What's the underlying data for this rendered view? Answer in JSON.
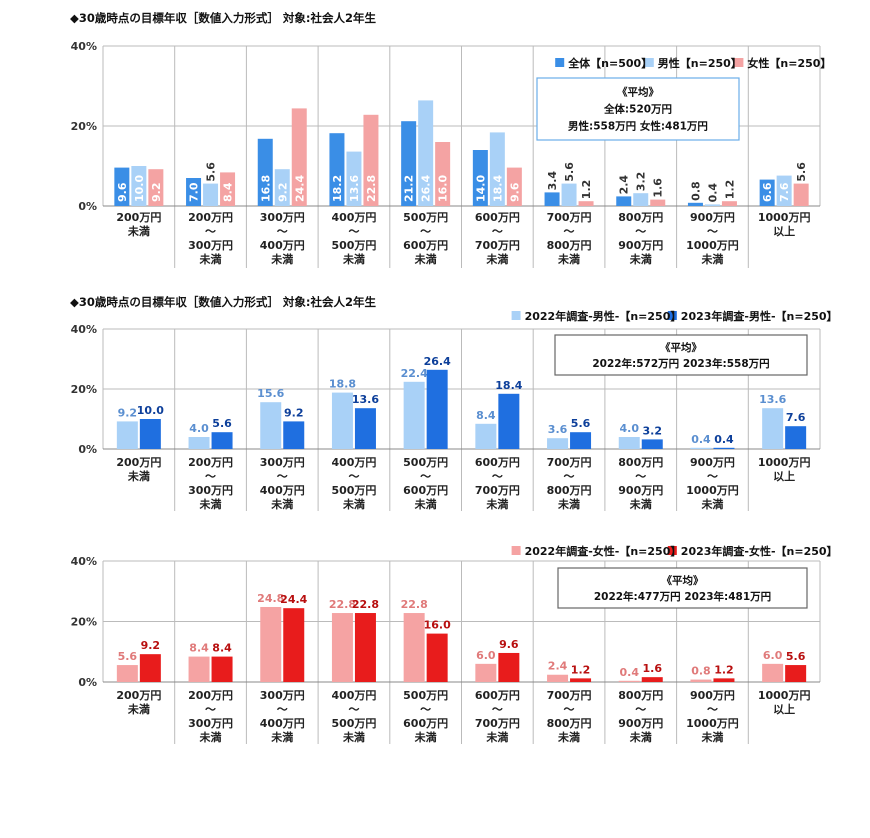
{
  "chart_data": [
    {
      "type": "bar",
      "title": "◆30歳時点の目標年収［数値入力形式］ 対象:社会人2年生",
      "categories": [
        [
          "200万円",
          "未満"
        ],
        [
          "200万円",
          "～",
          "300万円",
          "未満"
        ],
        [
          "300万円",
          "～",
          "400万円",
          "未満"
        ],
        [
          "400万円",
          "～",
          "500万円",
          "未満"
        ],
        [
          "500万円",
          "～",
          "600万円",
          "未満"
        ],
        [
          "600万円",
          "～",
          "700万円",
          "未満"
        ],
        [
          "700万円",
          "～",
          "800万円",
          "未満"
        ],
        [
          "800万円",
          "～",
          "900万円",
          "未満"
        ],
        [
          "900万円",
          "～",
          "1000万円",
          "未満"
        ],
        [
          "1000万円",
          "以上"
        ]
      ],
      "yticks": [
        "0%",
        "20%",
        "40%"
      ],
      "ylim": [
        0,
        40
      ],
      "label_position": "inside-vertical",
      "series": [
        {
          "name": "全体【n=500】",
          "color": "#3a8ee6",
          "label_color": "#ffffff",
          "values": [
            9.6,
            7.0,
            16.8,
            18.2,
            21.2,
            14.0,
            3.4,
            2.4,
            0.8,
            6.6
          ]
        },
        {
          "name": "男性【n=250】",
          "color": "#a9d1f7",
          "label_color": "#ffffff",
          "values": [
            10.0,
            5.6,
            9.2,
            13.6,
            26.4,
            18.4,
            5.6,
            3.2,
            0.4,
            7.6
          ]
        },
        {
          "name": "女性【n=250】",
          "color": "#f4a3a3",
          "label_color": "#ffffff",
          "values": [
            9.2,
            8.4,
            24.4,
            22.8,
            16.0,
            9.6,
            1.2,
            1.6,
            1.2,
            5.6
          ]
        }
      ],
      "legend": "top-right",
      "note": {
        "lines": [
          "《平均》",
          "全体:520万円",
          "男性:558万円 女性:481万円"
        ],
        "border": "#6aaee8"
      }
    },
    {
      "type": "bar",
      "title": "◆30歳時点の目標年収［数値入力形式］ 対象:社会人2年生",
      "categories": [
        [
          "200万円",
          "未満"
        ],
        [
          "200万円",
          "～",
          "300万円",
          "未満"
        ],
        [
          "300万円",
          "～",
          "400万円",
          "未満"
        ],
        [
          "400万円",
          "～",
          "500万円",
          "未満"
        ],
        [
          "500万円",
          "～",
          "600万円",
          "未満"
        ],
        [
          "600万円",
          "～",
          "700万円",
          "未満"
        ],
        [
          "700万円",
          "～",
          "800万円",
          "未満"
        ],
        [
          "800万円",
          "～",
          "900万円",
          "未満"
        ],
        [
          "900万円",
          "～",
          "1000万円",
          "未満"
        ],
        [
          "1000万円",
          "以上"
        ]
      ],
      "yticks": [
        "0%",
        "20%",
        "40%"
      ],
      "ylim": [
        0,
        40
      ],
      "label_position": "above",
      "series": [
        {
          "name": "2022年調査-男性-【n=250】",
          "color": "#a9d1f7",
          "label_color": "#5b8fd0",
          "values": [
            9.2,
            4.0,
            15.6,
            18.8,
            22.4,
            8.4,
            3.6,
            4.0,
            0.4,
            13.6
          ]
        },
        {
          "name": "2023年調査-男性-【n=250】",
          "color": "#1f6fe0",
          "label_color": "#0d3f9a",
          "values": [
            10.0,
            5.6,
            9.2,
            13.6,
            26.4,
            18.4,
            5.6,
            3.2,
            0.4,
            7.6
          ]
        }
      ],
      "legend": "top-right",
      "note": {
        "lines": [
          "《平均》",
          "2022年:572万円 2023年:558万円"
        ],
        "border": "#666666"
      }
    },
    {
      "type": "bar",
      "title": "",
      "categories": [
        [
          "200万円",
          "未満"
        ],
        [
          "200万円",
          "～",
          "300万円",
          "未満"
        ],
        [
          "300万円",
          "～",
          "400万円",
          "未満"
        ],
        [
          "400万円",
          "～",
          "500万円",
          "未満"
        ],
        [
          "500万円",
          "～",
          "600万円",
          "未満"
        ],
        [
          "600万円",
          "～",
          "700万円",
          "未満"
        ],
        [
          "700万円",
          "～",
          "800万円",
          "未満"
        ],
        [
          "800万円",
          "～",
          "900万円",
          "未満"
        ],
        [
          "900万円",
          "～",
          "1000万円",
          "未満"
        ],
        [
          "1000万円",
          "以上"
        ]
      ],
      "yticks": [
        "0%",
        "20%",
        "40%"
      ],
      "ylim": [
        0,
        40
      ],
      "label_position": "above",
      "series": [
        {
          "name": "2022年調査-女性-【n=250】",
          "color": "#f5a3a3",
          "label_color": "#e07a7a",
          "values": [
            5.6,
            8.4,
            24.8,
            22.8,
            22.8,
            6.0,
            2.4,
            0.4,
            0.8,
            6.0
          ]
        },
        {
          "name": "2023年調査-女性-【n=250】",
          "color": "#e81c1c",
          "label_color": "#b80f0f",
          "values": [
            9.2,
            8.4,
            24.4,
            22.8,
            16.0,
            9.6,
            1.2,
            1.6,
            1.2,
            5.6
          ]
        }
      ],
      "legend": "top-right",
      "note": {
        "lines": [
          "《平均》",
          "2022年:477万円 2023年:481万円"
        ],
        "border": "#666666"
      }
    }
  ]
}
